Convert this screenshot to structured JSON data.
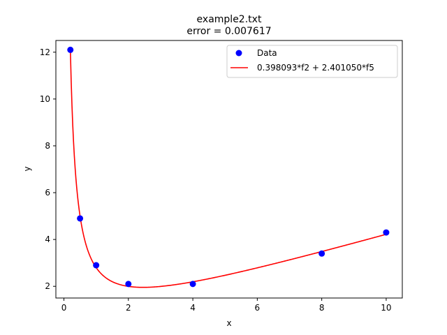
{
  "chart_data": {
    "type": "scatter",
    "title": "example2.txt",
    "subtitle": "error  = 0.007617",
    "xlabel": "x",
    "ylabel": "y",
    "xlim": [
      -0.25,
      10.5
    ],
    "ylim": [
      1.5,
      12.5
    ],
    "xticks": [
      0,
      2,
      4,
      6,
      8,
      10
    ],
    "yticks": [
      2,
      4,
      6,
      8,
      10,
      12
    ],
    "grid": false,
    "legend_position": "upper-right",
    "series": [
      {
        "name": "Data",
        "type": "scatter",
        "color": "#0000ff",
        "x": [
          0.2,
          0.5,
          1,
          2,
          4,
          8,
          10
        ],
        "y": [
          12.1,
          4.9,
          2.9,
          2.1,
          2.1,
          3.4,
          4.3
        ]
      },
      {
        "name": "0.398093*f2 + 2.401050*f5",
        "type": "line",
        "color": "#ff0000",
        "coefficients": {
          "f2": 0.398093,
          "f5": 2.40105
        },
        "x_range": [
          0.2,
          10
        ]
      }
    ]
  }
}
